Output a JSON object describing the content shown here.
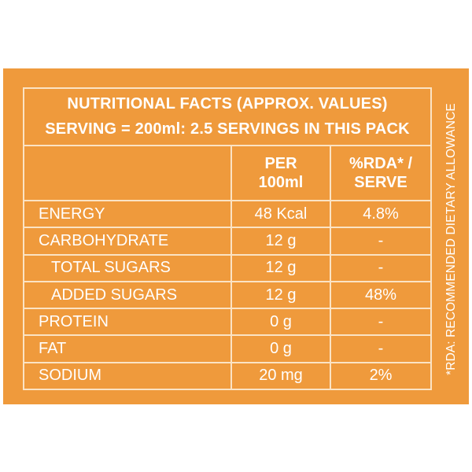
{
  "title": {
    "line1": "NUTRITIONAL FACTS  (APPROX. VALUES)",
    "line2": "SERVING = 200ml: 2.5 SERVINGS IN THIS PACK"
  },
  "columns": {
    "per_100ml": [
      "PER",
      "100ml"
    ],
    "rda_serve": [
      "%RDA* /",
      "SERVE"
    ]
  },
  "rows": [
    {
      "name": "ENERGY",
      "per100": "48 Kcal",
      "rda": "4.8%"
    },
    {
      "name": "CARBOHYDRATE",
      "per100": "12 g",
      "rda": "-"
    },
    {
      "name": "TOTAL SUGARS",
      "per100": "12 g",
      "rda": "-"
    },
    {
      "name": "ADDED SUGARS",
      "per100": "12 g",
      "rda": "48%"
    },
    {
      "name": "PROTEIN",
      "per100": "0 g",
      "rda": "-"
    },
    {
      "name": "FAT",
      "per100": "0 g",
      "rda": "-"
    },
    {
      "name": "SODIUM",
      "per100": "20 mg",
      "rda": "2%"
    }
  ],
  "footnote": "*RDA: RECOMMENDED DIETARY ALLOWANCE",
  "colors": {
    "panel": "#ef9a3c",
    "rule": "#fbe3c4",
    "text": "#ffffff"
  }
}
